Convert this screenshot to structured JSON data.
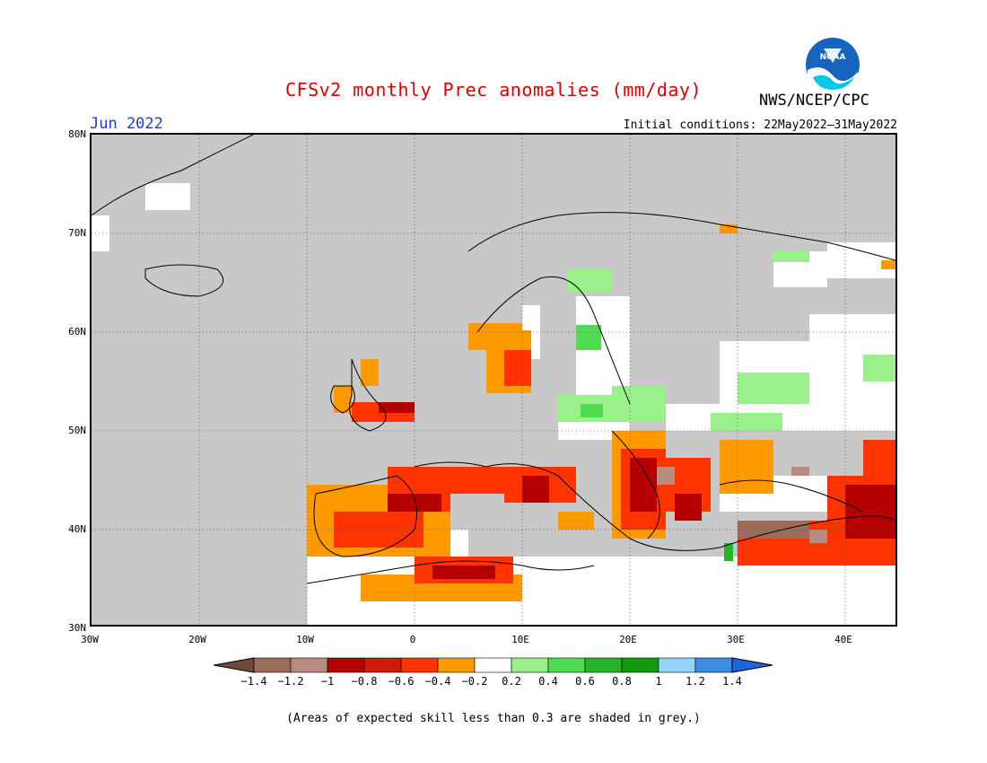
{
  "title": "CFSv2 monthly Prec anomalies (mm/day)",
  "agency": "NWS/NCEP/CPC",
  "logo_text": "NOAA",
  "month": "Jun 2022",
  "initial_conditions": "Initial conditions: 22May2022–31May2022",
  "lat_labels": [
    "80N",
    "70N",
    "60N",
    "50N",
    "40N",
    "30N"
  ],
  "lon_labels": [
    "30W",
    "20W",
    "10W",
    "0",
    "10E",
    "20E",
    "30E",
    "40E"
  ],
  "colorbar": {
    "labels": [
      "−1.4",
      "−1.2",
      "−1",
      "−0.8",
      "−0.6",
      "−0.4",
      "−0.2",
      "0.2",
      "0.4",
      "0.6",
      "0.8",
      "1",
      "1.2",
      "1.4"
    ],
    "colors": [
      "#9c6b5a",
      "#b88c80",
      "#b50000",
      "#d01a0a",
      "#ff3300",
      "#ff9900",
      "#ffffff",
      "#9cf08c",
      "#50dc50",
      "#28b428",
      "#119b11",
      "#96d2fa",
      "#3c8ce6"
    ],
    "low_end": "#6e4a3c",
    "high_end": "#1e64dc"
  },
  "skill_note": "(Areas of expected skill less than 0.3 are shaded in grey.)",
  "colors": {
    "title": "#e00000",
    "month": "#1f3bd1",
    "grey_mask": "#c8c8c8"
  }
}
